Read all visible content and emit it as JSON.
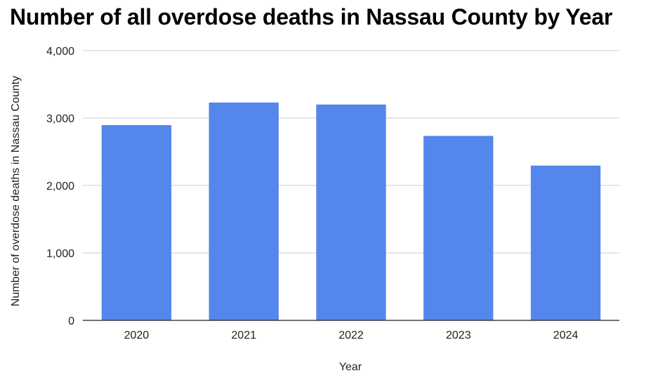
{
  "chart_data": {
    "type": "bar",
    "title": "Number of all overdose deaths in Nassau County by Year",
    "xlabel": "Year",
    "ylabel": "Number of overdose deaths in Nassau County",
    "categories": [
      "2020",
      "2021",
      "2022",
      "2023",
      "2024"
    ],
    "values": [
      2895,
      3230,
      3200,
      2735,
      2295
    ],
    "ylim": [
      0,
      4000
    ],
    "yticks": [
      0,
      1000,
      2000,
      3000,
      4000
    ],
    "ytick_labels": [
      "0",
      "1,000",
      "2,000",
      "3,000",
      "4,000"
    ],
    "grid": true,
    "legend": "none",
    "bar_color": "#5486ec",
    "grid_color": "#cccccc",
    "axis_color": "#222222"
  }
}
